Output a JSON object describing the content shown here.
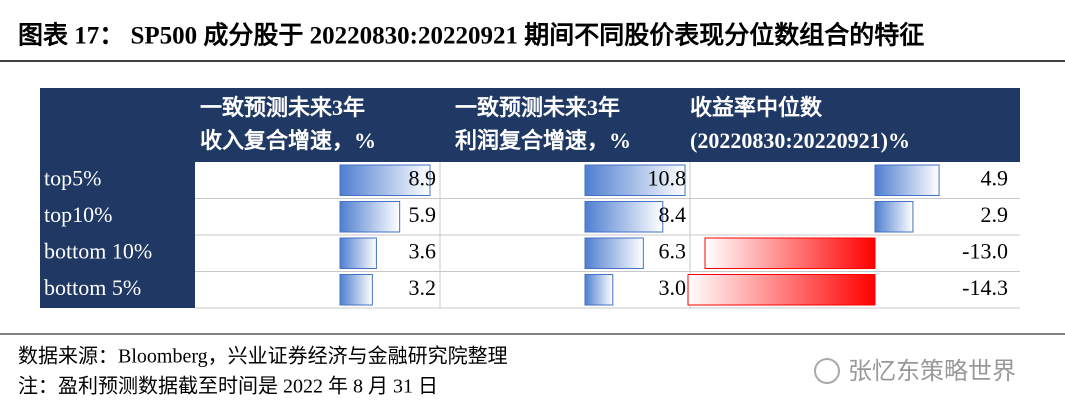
{
  "title": "图表 17：  SP500 成分股于 20220830:20220921 期间不同股价表现分位数组合的特征",
  "table": {
    "header": [
      [
        "一致预测未来3年",
        "收入复合增速，%"
      ],
      [
        "一致预测未来3年",
        "利润复合增速，%"
      ],
      [
        "收益率中位数",
        "(20220830:20220921)%"
      ]
    ],
    "rows": [
      {
        "label": "top5%",
        "values": [
          "8.9",
          "10.8",
          "4.9"
        ]
      },
      {
        "label": "top10%",
        "values": [
          "5.9",
          "8.4",
          "2.9"
        ]
      },
      {
        "label": "bottom 10%",
        "values": [
          "3.6",
          "6.3",
          "-13.0"
        ]
      },
      {
        "label": "bottom 5%",
        "values": [
          "3.2",
          "3.0",
          "-14.3"
        ]
      }
    ]
  },
  "notes": [
    "数据来源：Bloomberg，兴业证券经济与金融研究院整理",
    "注：盈利预测数据截至时间是 2022 年 8 月 31 日"
  ],
  "watermark": "张忆东策略世界"
}
